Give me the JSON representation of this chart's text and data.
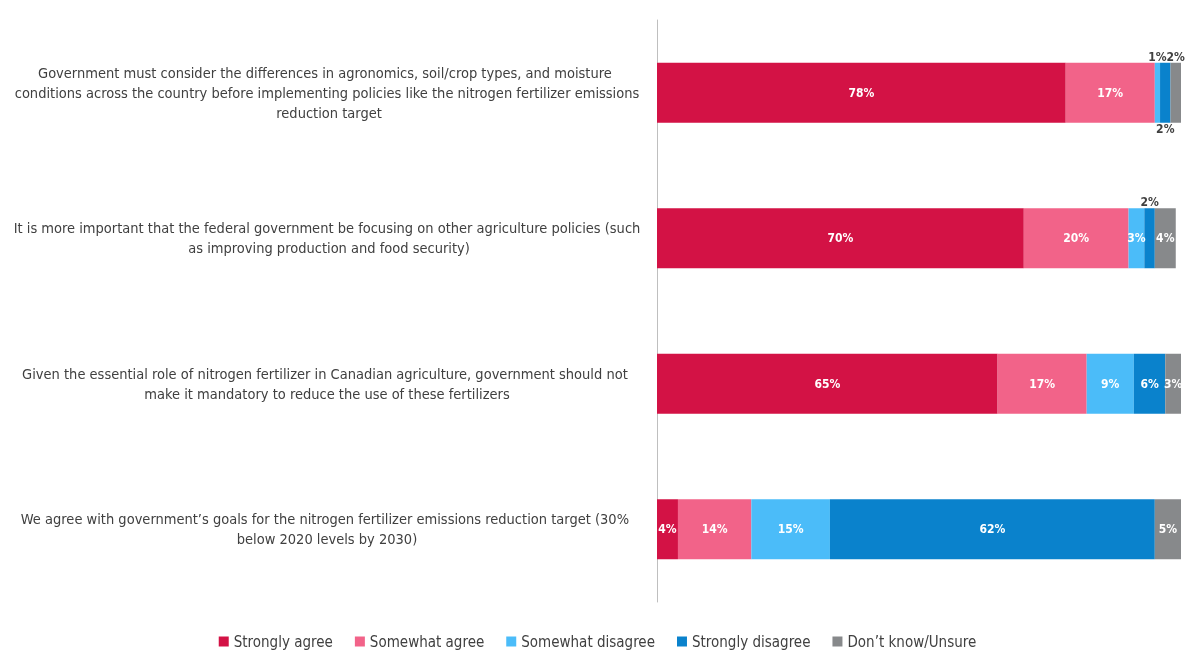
{
  "chart_data": {
    "type": "bar",
    "orientation": "horizontal",
    "stacked": true,
    "legend": "bottom",
    "categories": [
      "Government must consider the differences in agronomics, soil/crop types, and moisture conditions across the country before implementing policies like the nitrogen fertilizer emissions reduction target",
      "It is more important that the federal government be focusing on other agriculture policies (such as improving production and food security)",
      "Given the essential role of nitrogen fertilizer in Canadian agriculture, government should not make it mandatory to reduce the use of these fertilizers",
      "We agree with government’s goals for the nitrogen fertilizer emissions reduction target (30% below 2020 levels by 2030)"
    ],
    "series": [
      {
        "name": "Strongly agree",
        "color": "#d31245",
        "values": [
          78,
          70,
          65,
          4
        ],
        "value_labels": [
          "78%",
          "70%",
          "65%",
          "4%"
        ]
      },
      {
        "name": "Somewhat agree",
        "color": "#f26389",
        "values": [
          17,
          20,
          17,
          14
        ],
        "value_labels": [
          "17%",
          "20%",
          "17%",
          "14%"
        ]
      },
      {
        "name": "Somewhat disagree",
        "color": "#4bbcf9",
        "values": [
          1,
          3,
          9,
          15
        ],
        "value_labels": [
          "1%",
          "3%",
          "9%",
          "15%"
        ]
      },
      {
        "name": "Strongly disagree",
        "color": "#0a82cc",
        "values": [
          2,
          2,
          6,
          62
        ],
        "value_labels": [
          "2%",
          "2%",
          "6%",
          "62%"
        ]
      },
      {
        "name": "Don’t know/Unsure",
        "color": "#87898b",
        "values": [
          2,
          4,
          3,
          5
        ],
        "value_labels": [
          "2%",
          "4%",
          "3%",
          "5%"
        ]
      }
    ]
  }
}
